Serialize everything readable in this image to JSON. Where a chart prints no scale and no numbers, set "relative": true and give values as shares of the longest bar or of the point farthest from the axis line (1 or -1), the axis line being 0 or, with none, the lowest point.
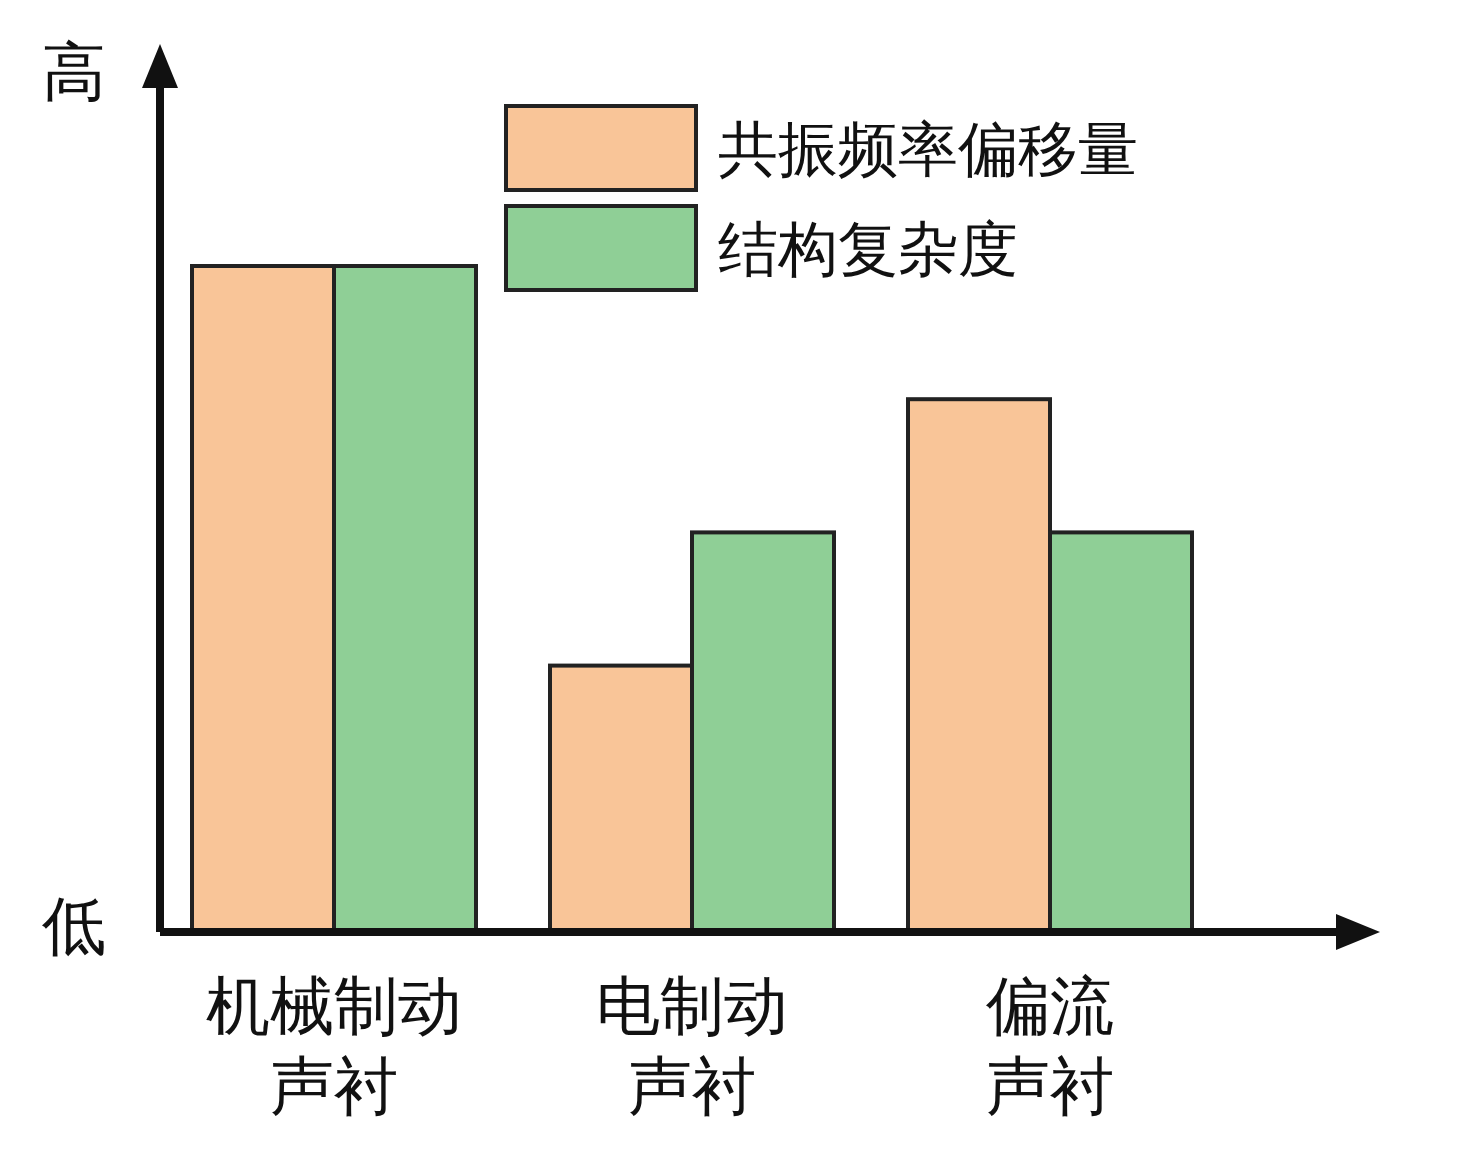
{
  "chart_data": {
    "type": "bar",
    "relative": true,
    "categories": [
      "机械制动声衬",
      "电制动声衬",
      "偏流声衬"
    ],
    "series": [
      {
        "name": "共振频率偏移量",
        "color": "#f9c598",
        "values": [
          1,
          0.4,
          0.8
        ]
      },
      {
        "name": "结构复杂度",
        "color": "#8fcf96",
        "values": [
          1,
          0.6,
          0.6
        ]
      }
    ],
    "annotations": [
      "高",
      "低"
    ],
    "legend": "top"
  }
}
